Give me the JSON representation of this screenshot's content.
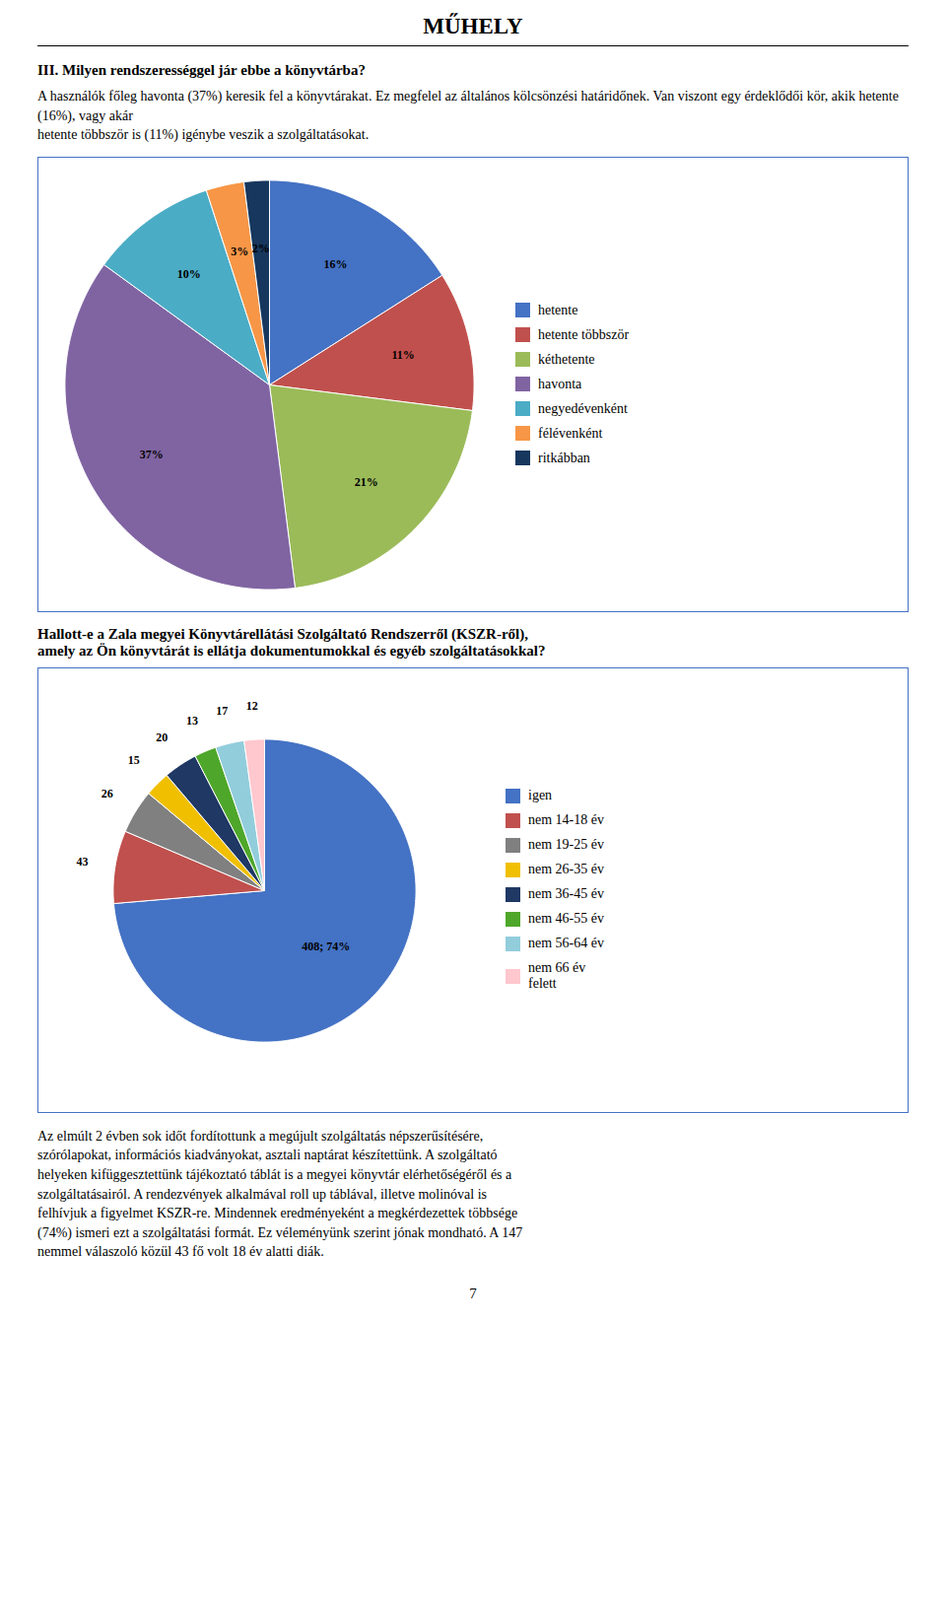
{
  "title": "MŰHELY",
  "chart_data": [
    {
      "type": "pie",
      "title": "III. Milyen rendszerességgel jár ebbe a könyvtárba?",
      "subtitle": "A használók főleg havonta (37%) keresik fel a könyvtárakat. Ez megfelel az általános kölcsönzési határidőnek. Van viszont egy érdeklődői kör, akik hetente (16%), vagy akár\nhetente többször is (11%) igénybe veszik a szolgáltatásokat.",
      "categories": [
        "hetente",
        "hetente többször",
        "kéthetente",
        "havonta",
        "negyedévenként",
        "félévenként",
        "ritkábban"
      ],
      "values": [
        16,
        11,
        21,
        37,
        10,
        3,
        2
      ],
      "value_labels": [
        "16%",
        "11%",
        "21%",
        "37%",
        "10%",
        "3%",
        "2%"
      ],
      "colors": [
        "#4472C4",
        "#C0504D",
        "#9BBB59",
        "#8064A2",
        "#4BACC6",
        "#F79646",
        "#17375E"
      ],
      "data_labels": true,
      "legend": "right"
    },
    {
      "type": "pie",
      "title": "Hallott-e a Zala megyei Könyvtárellátási Szolgáltató Rendszerről (KSZR-ről),\namely az Ön könyvtárát is ellátja dokumentumokkal és egyéb szolgáltatásokkal?",
      "categories": [
        "igen",
        "nem 14-18 év",
        "nem 19-25 év",
        "nem 26-35 év",
        "nem 36-45 év",
        "nem 46-55 év",
        "nem 56-64 év",
        "nem 66 év\nfelett"
      ],
      "values": [
        408,
        43,
        26,
        15,
        20,
        13,
        17,
        12
      ],
      "value_labels": [
        "408; 74%",
        "43",
        "26",
        "15",
        "20",
        "13",
        "17",
        "12"
      ],
      "colors": [
        "#4472C4",
        "#C0504D",
        "#808080",
        "#F0C000",
        "#1F3864",
        "#4EA72A",
        "#92CDDC",
        "#FFC7CE"
      ],
      "data_labels": true,
      "legend": "right"
    }
  ],
  "annotations": [
    "Az elmúlt 2 évben sok időt fordítottunk a megújult szolgáltatás népszerűsítésére,\nszórólapokat, információs kiadványokat, asztali naptárat készítettünk. A szolgáltató\nhelyeken kifüggesztettünk tájékoztató táblát is a megyei könyvtár elérhetőségéről és a\nszolgáltatásairól. A rendezvények alkalmával roll up táblával, illetve molinóval is\nfelhívjuk a figyelmet KSZR-re. Mindennek eredményeként a megkérdezettek többsége\n(74%) ismeri ezt a szolgáltatási formát. Ez véleményünk szerint jónak mondható. A 147\nnemmel válaszoló közül 43 fő volt 18 év alatti diák.",
    "7"
  ]
}
